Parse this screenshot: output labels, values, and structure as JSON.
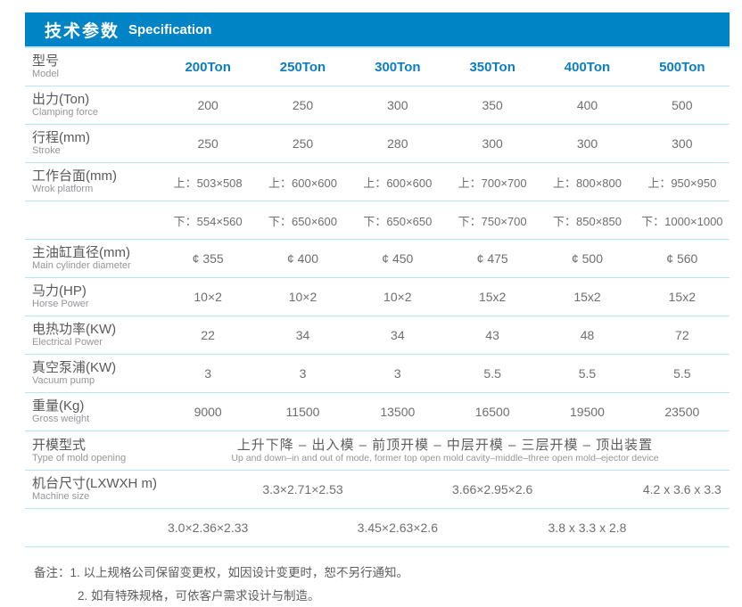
{
  "header": {
    "title_zh": "技术参数",
    "title_en": "Specification"
  },
  "colors": {
    "header_bg": "#0084c6",
    "model_text": "#0d7dc2",
    "divider": "#b9e3f6",
    "label_text": "#58595b",
    "sublabel_text": "#939598",
    "value_text": "#6d6e71"
  },
  "table": {
    "model_row": {
      "label_zh": "型号",
      "label_en": "Model",
      "values": [
        "200Ton",
        "250Ton",
        "300Ton",
        "350Ton",
        "400Ton",
        "500Ton"
      ]
    },
    "rows": [
      {
        "label_zh": "出力(Ton)",
        "label_en": "Clamping force",
        "values": [
          "200",
          "250",
          "300",
          "350",
          "400",
          "500"
        ]
      },
      {
        "label_zh": "行程(mm)",
        "label_en": "Stroke",
        "values": [
          "250",
          "250",
          "280",
          "300",
          "300",
          "300"
        ]
      },
      {
        "label_zh": "工作台面(mm)",
        "label_en": "Wrok platform",
        "values": [
          "上：503×508",
          "上：600×600",
          "上：600×600",
          "上：700×700",
          "上：800×800",
          "上：950×950"
        ]
      },
      {
        "label_zh": "",
        "label_en": "",
        "values": [
          "下：554×560",
          "下：650×600",
          "下：650×650",
          "下：750×700",
          "下：850×850",
          "下：1000×1000"
        ]
      },
      {
        "label_zh": "主油缸直径(mm)",
        "label_en": "Main cylinder diameter",
        "values": [
          "¢ 355",
          "¢ 400",
          "¢ 450",
          "¢ 475",
          "¢ 500",
          "¢ 560"
        ]
      },
      {
        "label_zh": "马力(HP)",
        "label_en": "Horse Power",
        "values": [
          "10×2",
          "10×2",
          "10×2",
          "15x2",
          "15x2",
          "15x2"
        ]
      },
      {
        "label_zh": "电热功率(KW)",
        "label_en": "Electrical Power",
        "values": [
          "22",
          "34",
          "34",
          "43",
          "48",
          "72"
        ]
      },
      {
        "label_zh": "真空泵浦(KW)",
        "label_en": "Vacuum pump",
        "values": [
          "3",
          "3",
          "3",
          "5.5",
          "5.5",
          "5.5"
        ]
      },
      {
        "label_zh": "重量(Kg)",
        "label_en": "Gross weight",
        "values": [
          "9000",
          "11500",
          "13500",
          "16500",
          "19500",
          "23500"
        ]
      }
    ],
    "mold_row": {
      "label_zh": "开模型式",
      "label_en": "Type of mold opening",
      "value_zh": "上升下降 – 出入模 – 前顶开模 – 中层开模 – 三层开模 – 顶出装置",
      "value_en": "Up and down–in and out of mode, former top open mold cavity–middle–three open mold–ejector device"
    },
    "size_row": {
      "label_zh": "机台尺寸(LXWXH m)",
      "label_en": "Machine size",
      "row1": [
        "3.3×2.71×2.53",
        "3.66×2.95×2.6",
        "4.2 x 3.6 x 3.3"
      ],
      "row2": [
        "3.0×2.36×2.33",
        "3.45×2.63×2.6",
        "3.8 x 3.3 x 2.8"
      ]
    }
  },
  "notes": {
    "label": "备注：",
    "line1": "1. 以上规格公司保留变更权，如因设计变更时，恕不另行通知。",
    "line2": "2. 如有特殊规格，可依客户需求设计与制造。"
  }
}
